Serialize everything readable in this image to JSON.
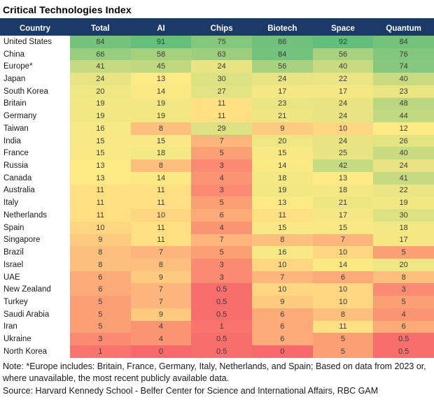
{
  "title": "Critical Technologies Index",
  "colors": {
    "header_bg": "#1B3A67",
    "header_text": "#FFFFFF"
  },
  "chart_data": {
    "type": "heatmap",
    "title": "Critical Technologies Index",
    "columns": [
      "Country",
      "Total",
      "AI",
      "Chips",
      "Biotech",
      "Space",
      "Quantum"
    ],
    "color_scale": {
      "min_color": "#F8696B",
      "mid_color": "#FFEB84",
      "max_color": "#63BE7B",
      "domain": [
        0,
        12,
        92
      ]
    },
    "rows": [
      {
        "country": "United States",
        "values": [
          84,
          91,
          75,
          86,
          92,
          84
        ]
      },
      {
        "country": "China",
        "values": [
          66,
          58,
          63,
          84,
          56,
          76
        ]
      },
      {
        "country": "Europe*",
        "values": [
          41,
          45,
          24,
          56,
          40,
          74
        ]
      },
      {
        "country": "Japan",
        "values": [
          24,
          13,
          30,
          24,
          22,
          40
        ]
      },
      {
        "country": "South Korea",
        "values": [
          20,
          14,
          27,
          17,
          17,
          23
        ]
      },
      {
        "country": "Britain",
        "values": [
          19,
          19,
          11,
          23,
          24,
          48
        ]
      },
      {
        "country": "Germany",
        "values": [
          19,
          19,
          11,
          21,
          24,
          44
        ]
      },
      {
        "country": "Taiwan",
        "values": [
          16,
          8,
          29,
          9,
          10,
          12
        ]
      },
      {
        "country": "India",
        "values": [
          15,
          15,
          7,
          20,
          24,
          26
        ]
      },
      {
        "country": "France",
        "values": [
          15,
          18,
          5,
          15,
          25,
          40
        ]
      },
      {
        "country": "Russia",
        "values": [
          13,
          8,
          3,
          14,
          42,
          24
        ]
      },
      {
        "country": "Canada",
        "values": [
          13,
          14,
          4,
          18,
          13,
          41
        ]
      },
      {
        "country": "Australia",
        "values": [
          11,
          11,
          3,
          19,
          18,
          22
        ]
      },
      {
        "country": "Italy",
        "values": [
          11,
          11,
          5,
          13,
          21,
          19
        ]
      },
      {
        "country": "Netherlands",
        "values": [
          11,
          10,
          6,
          11,
          17,
          30
        ]
      },
      {
        "country": "Spain",
        "values": [
          10,
          11,
          4,
          15,
          15,
          18
        ]
      },
      {
        "country": "Singapore",
        "values": [
          9,
          11,
          7,
          8,
          7,
          17
        ]
      },
      {
        "country": "Brazil",
        "values": [
          8,
          7,
          5,
          16,
          10,
          5
        ]
      },
      {
        "country": "Israel",
        "values": [
          8,
          8,
          3,
          10,
          14,
          20
        ]
      },
      {
        "country": "UAE",
        "values": [
          6,
          9,
          3,
          7,
          6,
          8
        ]
      },
      {
        "country": "New Zealand",
        "values": [
          6,
          7,
          0.5,
          10,
          10,
          3
        ]
      },
      {
        "country": "Turkey",
        "values": [
          5,
          7,
          0.5,
          9,
          10,
          5
        ]
      },
      {
        "country": "Saudi Arabia",
        "values": [
          5,
          9,
          0.5,
          6,
          8,
          4
        ]
      },
      {
        "country": "Iran",
        "values": [
          5,
          4,
          1,
          6,
          11,
          6
        ]
      },
      {
        "country": "Ukraine",
        "values": [
          3,
          4,
          0.5,
          6,
          5,
          0.5
        ]
      },
      {
        "country": "North Korea",
        "values": [
          1,
          0,
          0.5,
          0,
          5,
          0.5
        ]
      }
    ]
  },
  "footnotes": {
    "note": "Note: *Europe includes: Britain, France, Germany, Italy, Netherlands, and Spain; Based on data from 2023 or, where unavailable, the most recent publicly available data.",
    "source": "Source: Harvard Kennedy School - Belfer Center for Science and International Affairs, RBC GAM"
  }
}
